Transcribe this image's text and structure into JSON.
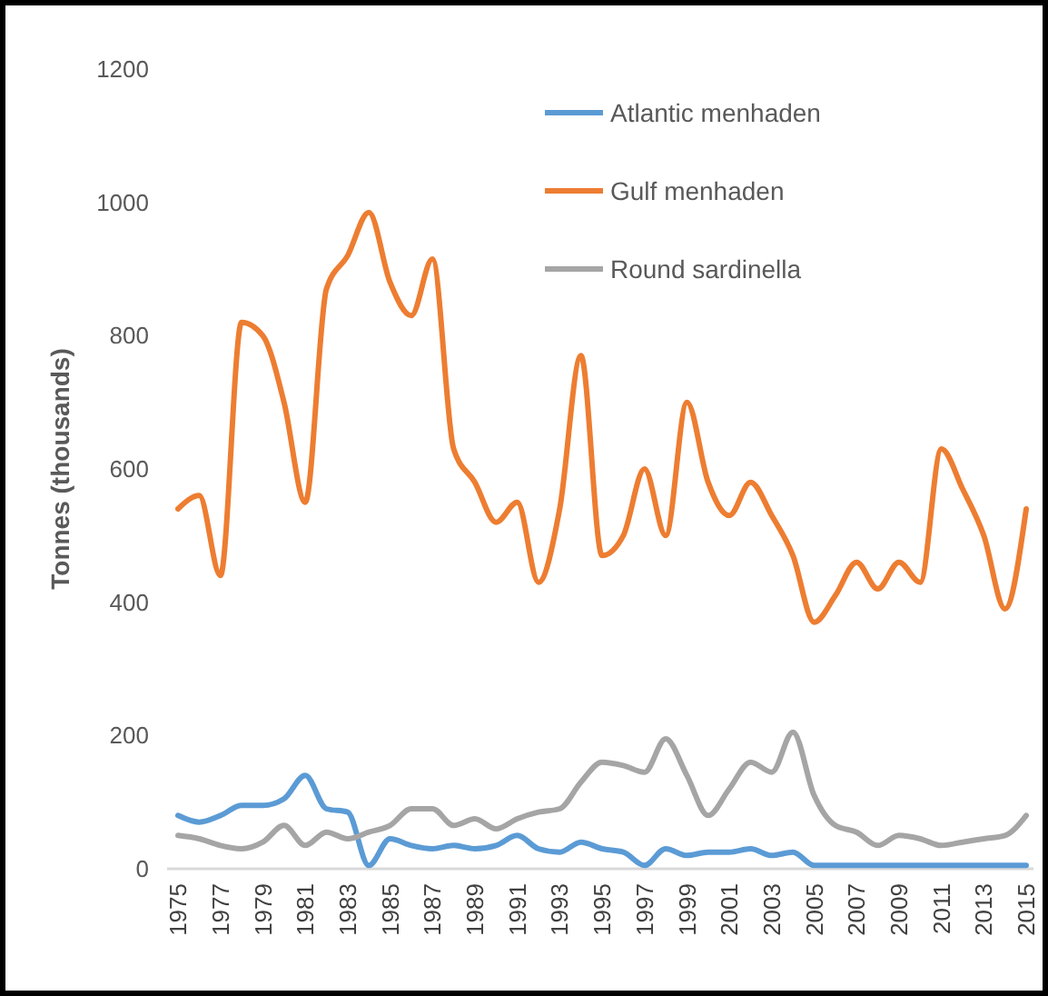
{
  "chart_data": {
    "type": "line",
    "ylabel": "Tonnes (thousands)",
    "categories": [
      "1975",
      null,
      "1977",
      null,
      "1979",
      null,
      "1981",
      null,
      "1983",
      null,
      "1985",
      null,
      "1987",
      null,
      "1989",
      null,
      "1991",
      null,
      "1993",
      null,
      "1995",
      null,
      "1997",
      null,
      "1999",
      null,
      "2001",
      null,
      "2003",
      null,
      "2005",
      null,
      "2007",
      null,
      "2009",
      null,
      "2011",
      null,
      "2013",
      null,
      "2015"
    ],
    "series": [
      {
        "name": "Atlantic menhaden",
        "color": "#5b9bd5",
        "values": [
          80,
          70,
          80,
          95,
          95,
          105,
          140,
          90,
          85,
          5,
          45,
          35,
          30,
          35,
          30,
          35,
          50,
          30,
          25,
          40,
          30,
          25,
          5,
          30,
          20,
          25,
          25,
          30,
          20,
          25,
          5,
          5,
          5,
          5,
          5,
          5,
          5,
          5,
          5,
          5,
          5
        ]
      },
      {
        "name": "Gulf menhaden",
        "color": "#ed7d31",
        "values": [
          540,
          560,
          440,
          820,
          800,
          700,
          550,
          870,
          920,
          985,
          880,
          830,
          915,
          630,
          580,
          520,
          550,
          430,
          540,
          770,
          470,
          500,
          600,
          500,
          700,
          580,
          530,
          580,
          530,
          470,
          370,
          410,
          460,
          420,
          460,
          430,
          630,
          570,
          500,
          390,
          540
        ]
      },
      {
        "name": "Round sardinella",
        "color": "#a5a5a5",
        "values": [
          50,
          45,
          35,
          30,
          40,
          65,
          35,
          55,
          45,
          55,
          65,
          90,
          90,
          65,
          75,
          60,
          75,
          85,
          90,
          130,
          160,
          155,
          145,
          195,
          140,
          80,
          120,
          160,
          145,
          205,
          110,
          65,
          55,
          35,
          50,
          45,
          35,
          40,
          45,
          50,
          80
        ]
      }
    ],
    "ylim": [
      0,
      1200
    ],
    "yticks": [
      0,
      200,
      400,
      600,
      800,
      1000,
      1200
    ],
    "grid": false,
    "legend": "top right",
    "line_style": "solid",
    "marker": "none"
  }
}
